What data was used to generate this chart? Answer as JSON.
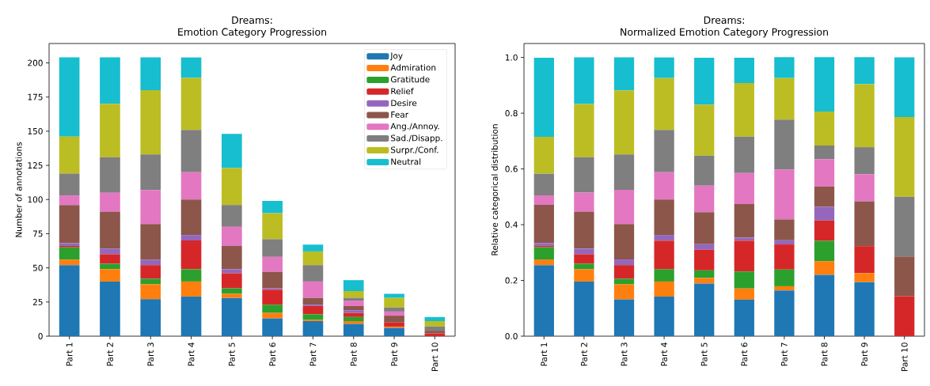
{
  "chart_data": [
    {
      "type": "bar",
      "stacked": true,
      "title": "Dreams:",
      "subtitle": "Emotion Category Progression",
      "ylabel": "Number of annotations",
      "categories": [
        "Part 1",
        "Part 2",
        "Part 3",
        "Part 4",
        "Part 5",
        "Part 6",
        "Part 7",
        "Part 8",
        "Part 9",
        "Part 10"
      ],
      "ylim": [
        0,
        214.2
      ],
      "yticks": [
        0,
        25,
        50,
        75,
        100,
        125,
        150,
        175,
        200
      ],
      "legend": "top right",
      "series": [
        {
          "name": "Joy",
          "color": "#1f77b4",
          "values": [
            52,
            40,
            27,
            29,
            28,
            13,
            11,
            9,
            6,
            0
          ]
        },
        {
          "name": "Admiration",
          "color": "#ff7f0e",
          "values": [
            4,
            9,
            11,
            11,
            3,
            4,
            1,
            2,
            1,
            0
          ]
        },
        {
          "name": "Gratitude",
          "color": "#2ca02c",
          "values": [
            9,
            4,
            4,
            9,
            4,
            6,
            4,
            3,
            0,
            0
          ]
        },
        {
          "name": "Relief",
          "color": "#d62728",
          "values": [
            1,
            7,
            10,
            21,
            11,
            11,
            6,
            3,
            3,
            2
          ]
        },
        {
          "name": "Desire",
          "color": "#9467bd",
          "values": [
            2,
            4,
            4,
            4,
            3,
            1,
            1,
            2,
            0,
            0
          ]
        },
        {
          "name": "Fear",
          "color": "#8c564b",
          "values": [
            28,
            27,
            26,
            26,
            17,
            12,
            5,
            3,
            5,
            2
          ]
        },
        {
          "name": "Ang./Annoy.",
          "color": "#e377c2",
          "values": [
            7,
            14,
            25,
            20,
            14,
            11,
            12,
            4,
            3,
            0
          ]
        },
        {
          "name": "Sad./Disapp.",
          "color": "#7f7f7f",
          "values": [
            16,
            26,
            26,
            31,
            16,
            13,
            12,
            2,
            3,
            3
          ]
        },
        {
          "name": "Surpr./Conf.",
          "color": "#bcbd22",
          "values": [
            27,
            39,
            47,
            38,
            27,
            19,
            10,
            5,
            7,
            4
          ]
        },
        {
          "name": "Neutral",
          "color": "#17becf",
          "values": [
            58,
            34,
            24,
            15,
            25,
            9,
            5,
            8,
            3,
            3
          ]
        }
      ]
    },
    {
      "type": "bar",
      "stacked": true,
      "title": "Dreams:",
      "subtitle": "Normalized Emotion Category Progression",
      "ylabel": "Relative categorical distribution",
      "categories": [
        "Part 1",
        "Part 2",
        "Part 3",
        "Part 4",
        "Part 5",
        "Part 6",
        "Part 7",
        "Part 8",
        "Part 9",
        "Part 10"
      ],
      "ylim": [
        0,
        1.05
      ],
      "yticks": [
        {
          "value": 0,
          "label": "0.0"
        },
        {
          "value": 0.2,
          "label": "0.2"
        },
        {
          "value": 0.4,
          "label": "0.4"
        },
        {
          "value": 0.6,
          "label": "0.6"
        },
        {
          "value": 0.8,
          "label": "0.8"
        },
        {
          "value": 1,
          "label": "1.0"
        }
      ],
      "series": [
        {
          "color": "#1f77b4",
          "values": [
            0.255,
            0.196,
            0.132,
            0.142,
            0.189,
            0.131,
            0.164,
            0.22,
            0.194,
            0
          ]
        },
        {
          "color": "#ff7f0e",
          "values": [
            0.02,
            0.044,
            0.054,
            0.054,
            0.02,
            0.04,
            0.015,
            0.049,
            0.032,
            0
          ]
        },
        {
          "color": "#2ca02c",
          "values": [
            0.044,
            0.02,
            0.02,
            0.044,
            0.027,
            0.061,
            0.06,
            0.073,
            0,
            0
          ]
        },
        {
          "color": "#d62728",
          "values": [
            0.005,
            0.034,
            0.049,
            0.103,
            0.074,
            0.111,
            0.09,
            0.073,
            0.097,
            0.143
          ]
        },
        {
          "color": "#9467bd",
          "values": [
            0.01,
            0.02,
            0.02,
            0.02,
            0.02,
            0.01,
            0.015,
            0.049,
            0,
            0
          ]
        },
        {
          "color": "#8c564b",
          "values": [
            0.137,
            0.132,
            0.127,
            0.127,
            0.115,
            0.121,
            0.075,
            0.073,
            0.161,
            0.143
          ]
        },
        {
          "color": "#e377c2",
          "values": [
            0.034,
            0.069,
            0.123,
            0.098,
            0.095,
            0.111,
            0.179,
            0.098,
            0.097,
            0
          ]
        },
        {
          "color": "#7f7f7f",
          "values": [
            0.078,
            0.127,
            0.127,
            0.152,
            0.108,
            0.131,
            0.179,
            0.049,
            0.097,
            0.214
          ]
        },
        {
          "color": "#bcbd22",
          "values": [
            0.132,
            0.191,
            0.23,
            0.186,
            0.182,
            0.192,
            0.149,
            0.122,
            0.226,
            0.286
          ]
        },
        {
          "color": "#17becf",
          "values": [
            0.284,
            0.167,
            0.118,
            0.074,
            0.169,
            0.091,
            0.075,
            0.195,
            0.097,
            0.214
          ]
        }
      ]
    }
  ]
}
